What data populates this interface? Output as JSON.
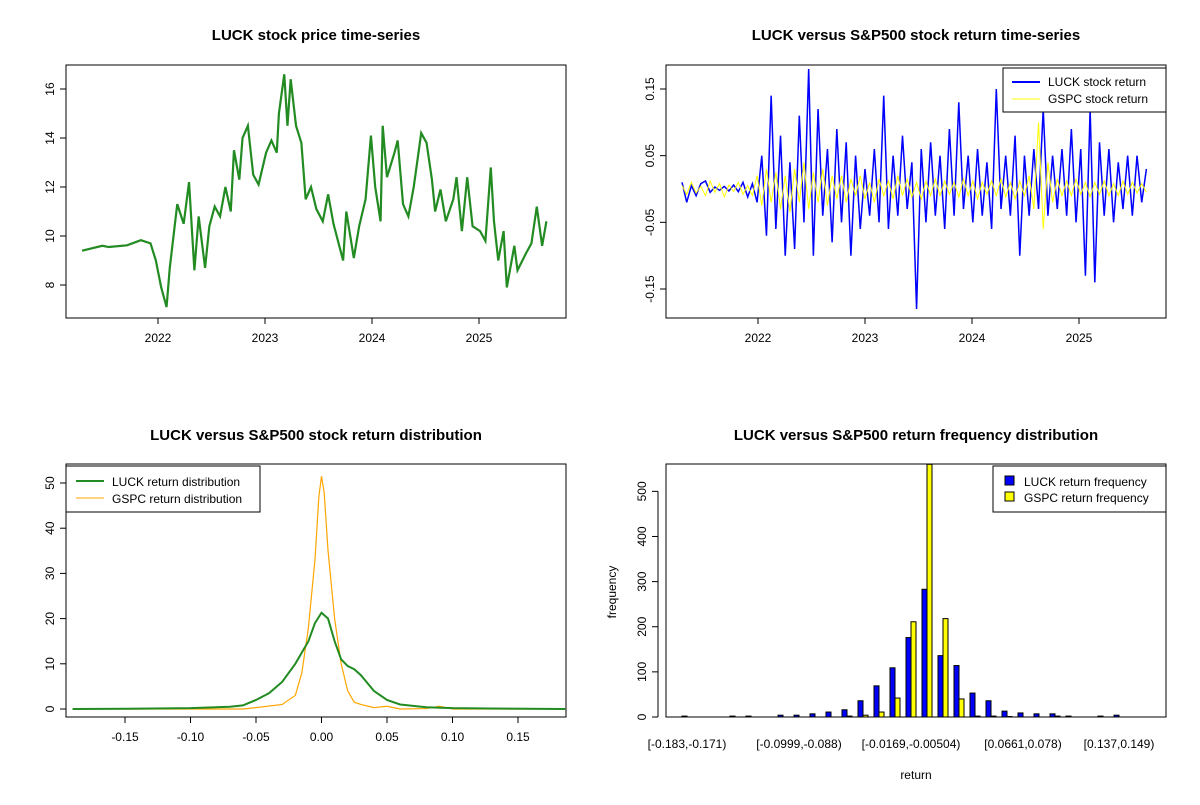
{
  "chart_data": [
    {
      "type": "line",
      "title": "LUCK stock price time-series",
      "xlabel": "",
      "ylabel": "",
      "xticks": [
        "2022",
        "2023",
        "2024",
        "2025"
      ],
      "yticks": [
        "8",
        "10",
        "12",
        "14",
        "16"
      ],
      "xlim": [
        2021.15,
        2025.8
      ],
      "ylim": [
        6.8,
        16.9
      ],
      "color": "#228B22",
      "series": [
        {
          "name": "LUCK price",
          "t": [
            2021.29,
            2021.48,
            2021.54,
            2021.71,
            2021.84,
            2021.93,
            2021.98,
            2022.03,
            2022.08,
            2022.11,
            2022.18,
            2022.24,
            2022.29,
            2022.34,
            2022.38,
            2022.44,
            2022.48,
            2022.53,
            2022.58,
            2022.63,
            2022.68,
            2022.71,
            2022.76,
            2022.79,
            2022.84,
            2022.89,
            2022.94,
            2023.01,
            2023.06,
            2023.11,
            2023.13,
            2023.18,
            2023.21,
            2023.24,
            2023.29,
            2023.34,
            2023.38,
            2023.43,
            2023.48,
            2023.54,
            2023.59,
            2023.64,
            2023.73,
            2023.76,
            2023.83,
            2023.88,
            2023.94,
            2023.99,
            2024.03,
            2024.08,
            2024.1,
            2024.14,
            2024.21,
            2024.24,
            2024.29,
            2024.34,
            2024.39,
            2024.46,
            2024.51,
            2024.56,
            2024.59,
            2024.64,
            2024.69,
            2024.76,
            2024.79,
            2024.84,
            2024.89,
            2024.94,
            2025.01,
            2025.06,
            2025.11,
            2025.14,
            2025.18,
            2025.23,
            2025.26,
            2025.33,
            2025.36,
            2025.44,
            2025.49,
            2025.54,
            2025.59,
            2025.63
          ],
          "values": [
            9.4,
            9.6,
            9.55,
            9.62,
            9.83,
            9.7,
            9.0,
            7.9,
            7.1,
            8.7,
            11.3,
            10.5,
            12.2,
            8.6,
            10.8,
            8.7,
            10.4,
            11.2,
            10.8,
            12.0,
            11.0,
            13.5,
            12.3,
            14.0,
            14.5,
            12.5,
            12.1,
            13.4,
            13.9,
            13.4,
            15.0,
            16.6,
            14.5,
            16.4,
            14.5,
            13.8,
            11.5,
            12.0,
            11.1,
            10.6,
            11.7,
            10.5,
            9.0,
            11.0,
            9.1,
            10.4,
            11.5,
            14.1,
            12.0,
            10.6,
            14.5,
            12.4,
            13.4,
            13.9,
            11.3,
            10.8,
            12.0,
            14.2,
            13.8,
            12.3,
            11.0,
            11.9,
            10.6,
            11.5,
            12.4,
            10.2,
            12.4,
            10.4,
            10.2,
            9.8,
            12.8,
            10.6,
            9.0,
            10.2,
            7.9,
            9.6,
            8.6,
            9.3,
            9.7,
            11.2,
            9.6,
            10.6
          ]
        }
      ]
    },
    {
      "type": "line",
      "title": "LUCK versus S&P500 stock return time-series",
      "xticks": [
        "2022",
        "2023",
        "2024",
        "2025"
      ],
      "yticks": [
        "-0.15",
        "-0.05",
        "0.05",
        "0.15"
      ],
      "xlim": [
        2021.15,
        2025.8
      ],
      "ylim": [
        -0.186,
        0.193
      ],
      "t_range": [
        2021.29,
        2025.63
      ],
      "legend": {
        "position": "top-right",
        "entries": [
          "LUCK stock return",
          "GSPC stock return"
        ]
      },
      "series": [
        {
          "name": "LUCK stock return",
          "color": "#0000FF",
          "values": [
            0.01,
            -0.02,
            0.005,
            -0.01,
            0.008,
            0.012,
            -0.005,
            0.003,
            -0.002,
            0.004,
            -0.003,
            0.006,
            -0.004,
            0.01,
            -0.012,
            0.008,
            -0.02,
            0.05,
            -0.07,
            0.14,
            -0.06,
            0.08,
            -0.1,
            0.04,
            -0.09,
            0.11,
            -0.05,
            0.18,
            -0.1,
            0.12,
            -0.04,
            0.06,
            -0.08,
            0.09,
            -0.05,
            0.07,
            -0.1,
            0.05,
            -0.06,
            0.03,
            -0.04,
            0.06,
            -0.05,
            0.14,
            -0.06,
            0.05,
            -0.04,
            0.08,
            -0.03,
            0.04,
            -0.18,
            0.06,
            -0.05,
            0.07,
            -0.04,
            0.05,
            -0.06,
            0.09,
            -0.04,
            0.13,
            -0.03,
            0.05,
            -0.05,
            0.06,
            -0.04,
            0.04,
            -0.06,
            0.15,
            -0.03,
            0.05,
            -0.04,
            0.08,
            -0.1,
            0.05,
            -0.04,
            0.06,
            -0.03,
            0.12,
            -0.04,
            0.05,
            -0.03,
            0.06,
            -0.04,
            0.09,
            -0.05,
            0.06,
            -0.13,
            0.12,
            -0.14,
            0.07,
            -0.04,
            0.06,
            -0.05,
            0.04,
            -0.03,
            0.05,
            -0.04,
            0.05,
            -0.02,
            0.03
          ]
        },
        {
          "name": "GSPC stock return",
          "color": "#FFFF00",
          "values": [
            0.005,
            -0.008,
            0.01,
            -0.006,
            0.004,
            -0.01,
            0.012,
            -0.005,
            0.008,
            -0.012,
            0.006,
            -0.004,
            0.01,
            -0.008,
            0.005,
            -0.01,
            0.02,
            -0.025,
            0.03,
            -0.02,
            0.025,
            -0.03,
            0.02,
            -0.035,
            0.03,
            -0.02,
            0.04,
            -0.03,
            0.025,
            -0.02,
            0.03,
            -0.025,
            0.02,
            -0.015,
            0.02,
            -0.02,
            0.015,
            -0.01,
            0.02,
            -0.015,
            0.01,
            -0.02,
            0.015,
            -0.01,
            0.012,
            -0.015,
            0.02,
            -0.01,
            0.015,
            -0.012,
            0.01,
            -0.015,
            0.012,
            -0.01,
            0.015,
            -0.01,
            0.012,
            -0.008,
            0.01,
            -0.012,
            0.015,
            -0.01,
            0.012,
            -0.015,
            0.01,
            -0.008,
            0.012,
            -0.01,
            0.015,
            -0.012,
            0.01,
            -0.015,
            0.012,
            -0.01,
            0.02,
            -0.03,
            0.1,
            -0.06,
            0.04,
            -0.02,
            0.015,
            -0.01,
            0.012,
            -0.01,
            0.015,
            -0.008,
            0.01,
            -0.012,
            0.01,
            -0.008,
            0.012,
            -0.01,
            0.008,
            -0.01,
            0.012,
            -0.008,
            0.01,
            -0.006,
            0.008,
            -0.005
          ]
        }
      ]
    },
    {
      "type": "line",
      "title": "LUCK versus S&P500 stock return distribution",
      "xticks": [
        "-0.15",
        "-0.10",
        "-0.05",
        "0.00",
        "0.05",
        "0.10",
        "0.15"
      ],
      "xtick_values": [
        -0.15,
        -0.1,
        -0.05,
        0,
        0.05,
        0.1,
        0.15
      ],
      "yticks": [
        "0",
        "10",
        "20",
        "30",
        "40",
        "50"
      ],
      "xlim": [
        -0.19,
        0.186
      ],
      "ylim": [
        -1.8,
        54
      ],
      "legend": {
        "position": "top-left",
        "entries": [
          "LUCK return distribution",
          "GSPC return distribution"
        ]
      },
      "series": [
        {
          "name": "LUCK return distribution",
          "color": "#228B22",
          "x": [
            -0.19,
            -0.15,
            -0.1,
            -0.07,
            -0.06,
            -0.05,
            -0.04,
            -0.03,
            -0.02,
            -0.01,
            -0.005,
            0,
            0.005,
            0.01,
            0.015,
            0.02,
            0.025,
            0.03,
            0.04,
            0.05,
            0.06,
            0.08,
            0.1,
            0.13,
            0.186
          ],
          "y": [
            0,
            0.05,
            0.2,
            0.5,
            0.8,
            2,
            3.5,
            6,
            10,
            15,
            19,
            21.3,
            20,
            15,
            11,
            9.5,
            8.8,
            7.5,
            4,
            2,
            1,
            0.4,
            0.2,
            0.1,
            0
          ]
        },
        {
          "name": "GSPC return distribution",
          "color": "#FFA500",
          "x": [
            -0.19,
            -0.06,
            -0.05,
            -0.03,
            -0.02,
            -0.015,
            -0.01,
            -0.005,
            -0.002,
            0,
            0.002,
            0.005,
            0.01,
            0.015,
            0.02,
            0.025,
            0.03,
            0.04,
            0.05,
            0.06,
            0.08,
            0.09,
            0.1,
            0.186
          ],
          "y": [
            0,
            0,
            0.3,
            1,
            3,
            8,
            18,
            33,
            47,
            51.5,
            48,
            35,
            20,
            10,
            4,
            1.5,
            1,
            0.3,
            0.6,
            0,
            0.1,
            0.6,
            0,
            0
          ]
        }
      ]
    },
    {
      "type": "bar",
      "title": "LUCK versus S&P500 return frequency distribution",
      "xlabel": "return",
      "ylabel": "frequency",
      "yticks": [
        "0",
        "100",
        "200",
        "300",
        "400",
        "500"
      ],
      "ylim": [
        0,
        560
      ],
      "category_labels_shown": [
        "[-0.183,-0.171)",
        "[-0.0999,-0.088)",
        "[-0.0169,-0.00504)",
        "[0.0661,0.078)",
        "[0.137,0.149)"
      ],
      "labelled_bins": [
        0,
        7,
        14,
        21,
        27
      ],
      "bin_count": 30,
      "legend": {
        "position": "top-right",
        "entries": [
          "LUCK return frequency",
          "GSPC return frequency"
        ]
      },
      "series": [
        {
          "name": "LUCK return frequency",
          "color": "#0000FF",
          "values": [
            2,
            0,
            0,
            2,
            2,
            0,
            4,
            4,
            7,
            11,
            16,
            36,
            69,
            109,
            176,
            283,
            136,
            114,
            53,
            36,
            13,
            9,
            7,
            7,
            2,
            0,
            2,
            4,
            0,
            0
          ]
        },
        {
          "name": "GSPC return frequency",
          "color": "#FFFF00",
          "values": [
            0,
            0,
            0,
            0,
            0,
            0,
            0,
            0,
            0,
            0,
            2,
            4,
            11,
            42,
            211,
            560,
            218,
            40,
            2,
            2,
            1,
            0,
            0,
            2,
            0,
            0,
            0,
            0,
            0,
            0
          ]
        }
      ]
    }
  ]
}
